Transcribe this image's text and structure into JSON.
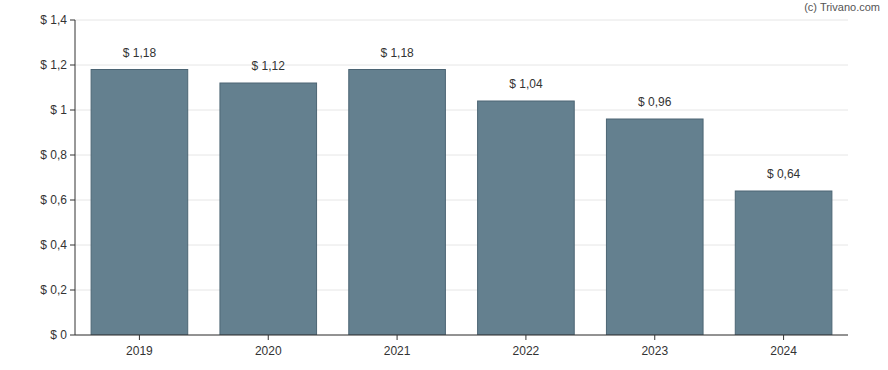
{
  "chart_data": {
    "type": "bar",
    "annotations": [
      "(c) Trivano.com"
    ],
    "categories": [
      "2019",
      "2020",
      "2021",
      "2022",
      "2023",
      "2024"
    ],
    "values": [
      1.18,
      1.12,
      1.18,
      1.04,
      0.96,
      0.64
    ],
    "value_labels": [
      "$ 1,18",
      "$ 1,12",
      "$ 1,18",
      "$ 1,04",
      "$ 0,96",
      "$ 0,64"
    ],
    "data_labels": true,
    "color": "#64808f",
    "ylim": [
      0,
      1.4
    ],
    "yticks": [
      {
        "value": 0,
        "label": "$ 0"
      },
      {
        "value": 0.2,
        "label": "$ 0,2"
      },
      {
        "value": 0.4,
        "label": "$ 0,4"
      },
      {
        "value": 0.6,
        "label": "$ 0,6"
      },
      {
        "value": 0.8,
        "label": "$ 0,8"
      },
      {
        "value": 1,
        "label": "$ 1"
      },
      {
        "value": 1.2,
        "label": "$ 1,2"
      },
      {
        "value": 1.4,
        "label": "$ 1,4"
      }
    ],
    "grid": true
  }
}
